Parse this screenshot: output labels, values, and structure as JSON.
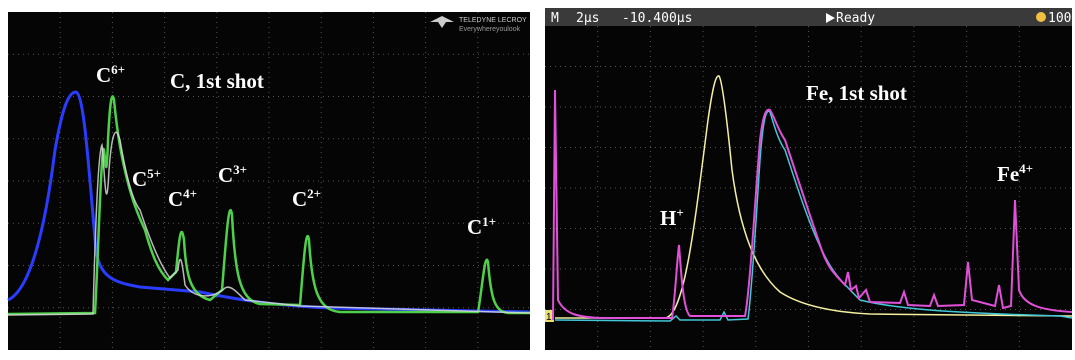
{
  "left_panel": {
    "brand": "TELEDYNE LECROY",
    "tagline": "Everywhereyoulook",
    "title": "C, 1st shot",
    "peaks": [
      {
        "base": "C",
        "sup": "6+"
      },
      {
        "base": "C",
        "sup": "5+"
      },
      {
        "base": "C",
        "sup": "4+"
      },
      {
        "base": "C",
        "sup": "3+"
      },
      {
        "base": "C",
        "sup": "2+"
      },
      {
        "base": "C",
        "sup": "1+"
      }
    ]
  },
  "right_panel": {
    "status_bar": {
      "mode": "M",
      "timebase": "2µs",
      "delay": "-10.400µs",
      "state": "Ready",
      "sample": "100"
    },
    "channel_marker": "1",
    "title": "Fe, 1st shot",
    "peaks": [
      {
        "base": "H",
        "sup": "+"
      },
      {
        "base": "Fe",
        "sup": "4+"
      }
    ]
  }
}
